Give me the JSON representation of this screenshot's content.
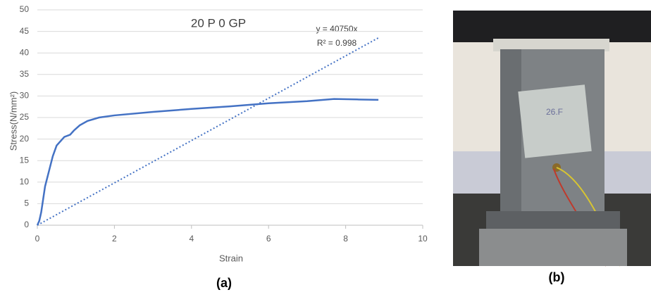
{
  "chart_data": {
    "type": "line",
    "title": "20 P 0 GP",
    "x_label": "Strain",
    "y_label": "Stress(N/mm²)",
    "annotations": [
      "y = 40750x",
      "R² = 0.998"
    ],
    "series": [
      {
        "color": "#4472c4",
        "style": "solid",
        "x": [
          0,
          0.05,
          0.1,
          0.15,
          0.2,
          0.3,
          0.4,
          0.5,
          0.7,
          0.85,
          0.95,
          1.1,
          1.3,
          1.6,
          2,
          3,
          4,
          5,
          6,
          7,
          7.7,
          8.3,
          8.85
        ],
        "values": [
          0,
          1,
          3,
          6,
          9,
          12.5,
          16,
          18.5,
          20.5,
          21,
          22,
          23.2,
          24.2,
          25,
          25.5,
          26.3,
          27,
          27.6,
          28.3,
          28.8,
          29.3,
          29.2,
          29.1
        ]
      },
      {
        "color": "#4472c4",
        "style": "dotted",
        "x": [
          0,
          8.85
        ],
        "values": [
          0,
          43.5
        ]
      }
    ],
    "xlim": [
      0,
      10
    ],
    "xticks": [
      0,
      2,
      4,
      6,
      8,
      10
    ],
    "ylim": [
      0,
      50
    ],
    "yticks": [
      0,
      5,
      10,
      15,
      20,
      25,
      30,
      35,
      40,
      45,
      50
    ],
    "grid": true
  },
  "figure_labels": [
    "(a)",
    "(b)"
  ]
}
